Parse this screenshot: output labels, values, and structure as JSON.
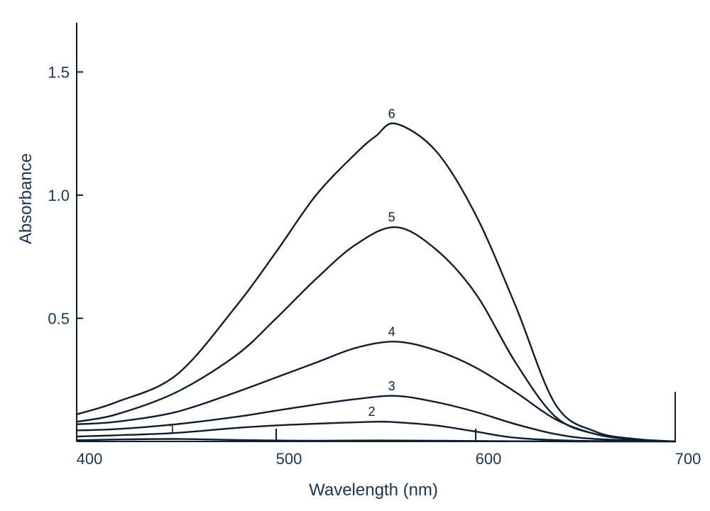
{
  "chart_data": {
    "type": "line",
    "xlabel": "Wavelength (nm)",
    "ylabel": "Absorbance",
    "xlim": [
      400,
      700
    ],
    "ylim": [
      0,
      1.7
    ],
    "xticks": [
      400,
      500,
      600,
      700
    ],
    "xtick_labels": [
      "400",
      "500",
      "600",
      "700"
    ],
    "yticks": [
      0.5,
      1.0,
      1.5
    ],
    "ytick_labels": [
      "0.5",
      "1.0",
      "1.5"
    ],
    "grid": false,
    "line_color": "#0f1e2e",
    "text_color": "#1c3550",
    "series": [
      {
        "name": "1",
        "x": [
          400,
          420,
          450,
          480,
          500,
          520,
          550,
          580,
          600,
          620,
          650,
          700
        ],
        "y": [
          0.005,
          0.008,
          0.01,
          0.006,
          0.004,
          0.003,
          0.004,
          0.003,
          0.002,
          0.001,
          0.0,
          0.0
        ]
      },
      {
        "name": "2",
        "x": [
          400,
          420,
          450,
          480,
          500,
          520,
          550,
          560,
          580,
          600,
          620,
          650,
          700
        ],
        "y": [
          0.02,
          0.025,
          0.035,
          0.055,
          0.065,
          0.072,
          0.08,
          0.078,
          0.065,
          0.04,
          0.015,
          0.003,
          0.0
        ]
      },
      {
        "name": "3",
        "x": [
          400,
          420,
          450,
          480,
          500,
          520,
          540,
          560,
          580,
          600,
          620,
          640,
          660,
          700
        ],
        "y": [
          0.045,
          0.05,
          0.07,
          0.1,
          0.125,
          0.15,
          0.172,
          0.185,
          0.16,
          0.12,
          0.07,
          0.03,
          0.01,
          0.0
        ]
      },
      {
        "name": "4",
        "x": [
          400,
          420,
          450,
          480,
          500,
          520,
          540,
          560,
          580,
          600,
          620,
          640,
          660,
          680,
          700
        ],
        "y": [
          0.07,
          0.08,
          0.12,
          0.2,
          0.26,
          0.32,
          0.38,
          0.405,
          0.37,
          0.3,
          0.2,
          0.09,
          0.03,
          0.008,
          0.0
        ]
      },
      {
        "name": "5",
        "x": [
          400,
          420,
          450,
          480,
          500,
          520,
          540,
          560,
          580,
          600,
          620,
          640,
          660,
          680,
          700
        ],
        "y": [
          0.08,
          0.11,
          0.2,
          0.35,
          0.5,
          0.66,
          0.8,
          0.87,
          0.78,
          0.6,
          0.32,
          0.1,
          0.03,
          0.008,
          0.0
        ]
      },
      {
        "name": "6",
        "x": [
          400,
          420,
          450,
          480,
          500,
          520,
          540,
          550,
          560,
          580,
          600,
          620,
          640,
          660,
          680,
          700
        ],
        "y": [
          0.11,
          0.16,
          0.27,
          0.55,
          0.77,
          1.0,
          1.17,
          1.24,
          1.29,
          1.18,
          0.92,
          0.55,
          0.15,
          0.04,
          0.01,
          0.0
        ]
      }
    ]
  }
}
